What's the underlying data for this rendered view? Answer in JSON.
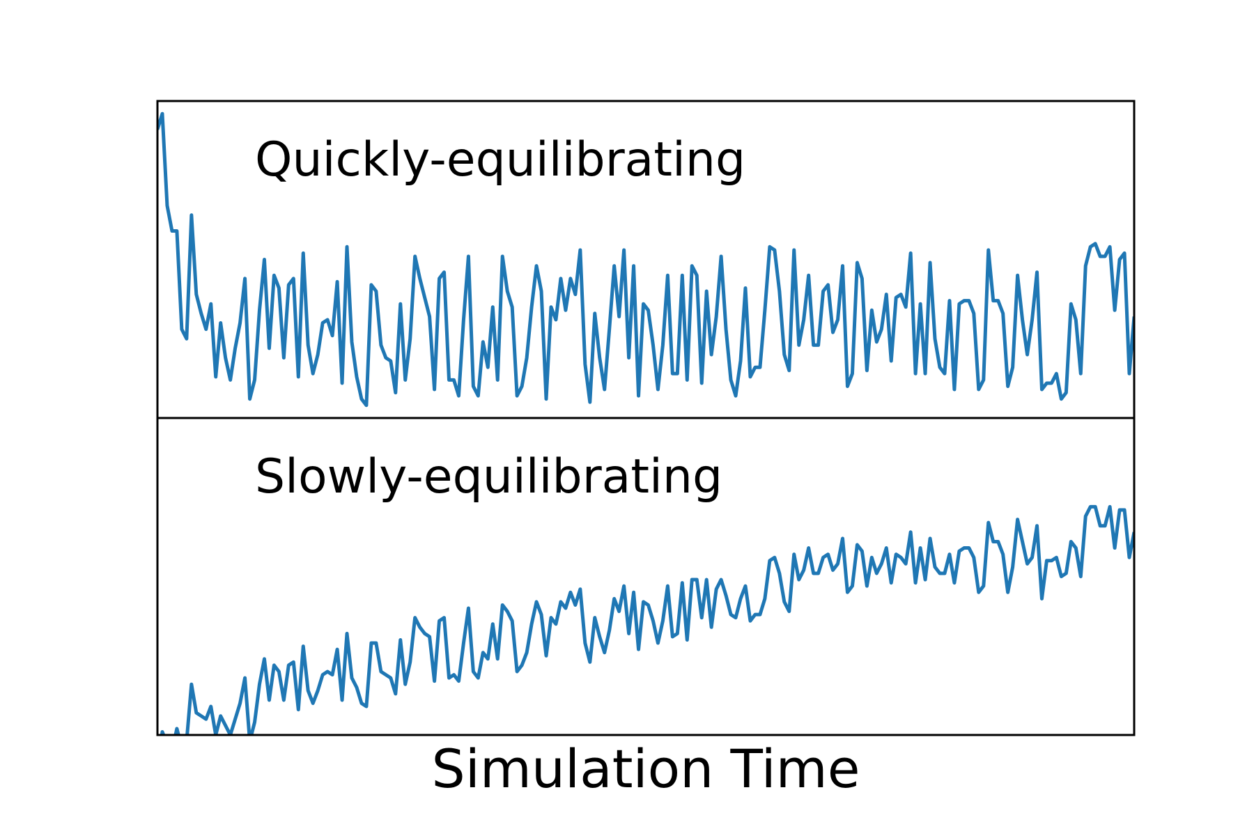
{
  "chart_data": [
    {
      "type": "line",
      "annotation": "Quickly-equilibrating",
      "xlabel": "",
      "ylabel": "",
      "grid": false,
      "legend": "none",
      "xticks": "none",
      "yticks": "none",
      "color": "#1f77b4",
      "series": [
        {
          "values": [
            0.91,
            0.96,
            0.67,
            0.59,
            0.59,
            0.28,
            0.25,
            0.64,
            0.39,
            0.33,
            0.28,
            0.36,
            0.13,
            0.3,
            0.19,
            0.12,
            0.22,
            0.3,
            0.44,
            0.06,
            0.12,
            0.34,
            0.5,
            0.22,
            0.45,
            0.41,
            0.19,
            0.42,
            0.44,
            0.13,
            0.52,
            0.23,
            0.14,
            0.2,
            0.3,
            0.31,
            0.26,
            0.43,
            0.11,
            0.54,
            0.24,
            0.13,
            0.06,
            0.04,
            0.42,
            0.4,
            0.23,
            0.19,
            0.18,
            0.08,
            0.36,
            0.12,
            0.25,
            0.51,
            0.44,
            0.38,
            0.32,
            0.09,
            0.44,
            0.46,
            0.12,
            0.12,
            0.07,
            0.31,
            0.51,
            0.1,
            0.07,
            0.24,
            0.16,
            0.35,
            0.12,
            0.51,
            0.4,
            0.35,
            0.07,
            0.1,
            0.19,
            0.35,
            0.48,
            0.4,
            0.06,
            0.35,
            0.31,
            0.44,
            0.34,
            0.44,
            0.39,
            0.53,
            0.17,
            0.05,
            0.33,
            0.19,
            0.09,
            0.28,
            0.48,
            0.32,
            0.53,
            0.19,
            0.48,
            0.07,
            0.36,
            0.34,
            0.23,
            0.09,
            0.23,
            0.45,
            0.14,
            0.14,
            0.45,
            0.12,
            0.48,
            0.45,
            0.11,
            0.4,
            0.2,
            0.32,
            0.51,
            0.28,
            0.12,
            0.07,
            0.18,
            0.41,
            0.13,
            0.16,
            0.16,
            0.34,
            0.54,
            0.53,
            0.4,
            0.2,
            0.15,
            0.53,
            0.23,
            0.31,
            0.45,
            0.23,
            0.23,
            0.4,
            0.42,
            0.27,
            0.31,
            0.48,
            0.1,
            0.14,
            0.49,
            0.44,
            0.15,
            0.34,
            0.24,
            0.28,
            0.39,
            0.18,
            0.38,
            0.39,
            0.35,
            0.52,
            0.14,
            0.36,
            0.14,
            0.49,
            0.25,
            0.16,
            0.14,
            0.37,
            0.09,
            0.36,
            0.37,
            0.37,
            0.33,
            0.09,
            0.12,
            0.53,
            0.37,
            0.37,
            0.33,
            0.1,
            0.16,
            0.45,
            0.31,
            0.2,
            0.31,
            0.46,
            0.09,
            0.11,
            0.11,
            0.14,
            0.06,
            0.08,
            0.36,
            0.31,
            0.14,
            0.48,
            0.54,
            0.55,
            0.51,
            0.51,
            0.54,
            0.34,
            0.5,
            0.52,
            0.14,
            0.32
          ]
        }
      ]
    },
    {
      "type": "line",
      "annotation": "Slowly-equilibrating",
      "xlabel": "Simulation Time",
      "ylabel": "",
      "grid": false,
      "legend": "none",
      "xticks": "none",
      "yticks": "none",
      "color": "#1f77b4",
      "series": [
        {
          "values": [
            -0.11,
            0.01,
            -0.03,
            -0.05,
            0.02,
            -0.04,
            -0.02,
            0.16,
            0.07,
            0.06,
            0.05,
            0.09,
            0.0,
            0.06,
            0.03,
            0.0,
            0.05,
            0.1,
            0.18,
            -0.02,
            0.04,
            0.16,
            0.24,
            0.11,
            0.22,
            0.2,
            0.11,
            0.22,
            0.23,
            0.08,
            0.28,
            0.14,
            0.1,
            0.14,
            0.19,
            0.2,
            0.19,
            0.27,
            0.11,
            0.32,
            0.18,
            0.15,
            0.1,
            0.09,
            0.29,
            0.29,
            0.2,
            0.19,
            0.18,
            0.13,
            0.3,
            0.16,
            0.23,
            0.37,
            0.34,
            0.32,
            0.31,
            0.17,
            0.36,
            0.37,
            0.18,
            0.19,
            0.17,
            0.29,
            0.4,
            0.2,
            0.18,
            0.26,
            0.24,
            0.35,
            0.24,
            0.41,
            0.39,
            0.36,
            0.2,
            0.22,
            0.26,
            0.35,
            0.42,
            0.38,
            0.25,
            0.37,
            0.35,
            0.42,
            0.4,
            0.45,
            0.41,
            0.46,
            0.29,
            0.23,
            0.37,
            0.31,
            0.26,
            0.33,
            0.43,
            0.39,
            0.47,
            0.32,
            0.45,
            0.27,
            0.42,
            0.41,
            0.36,
            0.29,
            0.36,
            0.47,
            0.31,
            0.32,
            0.48,
            0.3,
            0.49,
            0.49,
            0.37,
            0.49,
            0.34,
            0.46,
            0.49,
            0.44,
            0.38,
            0.37,
            0.43,
            0.47,
            0.36,
            0.38,
            0.38,
            0.43,
            0.55,
            0.56,
            0.51,
            0.42,
            0.39,
            0.57,
            0.49,
            0.52,
            0.59,
            0.51,
            0.51,
            0.56,
            0.57,
            0.52,
            0.54,
            0.62,
            0.45,
            0.47,
            0.6,
            0.58,
            0.47,
            0.56,
            0.51,
            0.54,
            0.59,
            0.48,
            0.57,
            0.56,
            0.54,
            0.64,
            0.48,
            0.59,
            0.49,
            0.62,
            0.53,
            0.51,
            0.51,
            0.57,
            0.48,
            0.58,
            0.59,
            0.59,
            0.56,
            0.45,
            0.47,
            0.67,
            0.61,
            0.61,
            0.57,
            0.45,
            0.53,
            0.68,
            0.61,
            0.54,
            0.56,
            0.66,
            0.43,
            0.55,
            0.55,
            0.56,
            0.5,
            0.51,
            0.61,
            0.59,
            0.5,
            0.69,
            0.72,
            0.72,
            0.66,
            0.66,
            0.72,
            0.59,
            0.71,
            0.71,
            0.56,
            0.64
          ]
        }
      ]
    }
  ]
}
